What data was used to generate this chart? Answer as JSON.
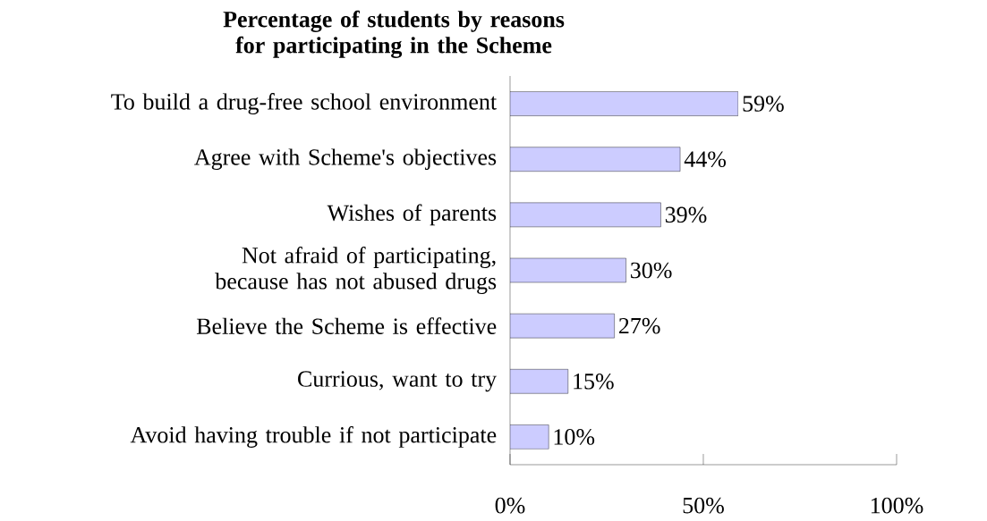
{
  "chart_data": {
    "type": "bar",
    "orientation": "horizontal",
    "title": "Percentage of students by reasons for participating in the Scheme",
    "categories": [
      "To build a drug-free school environment",
      "Agree with Scheme's objectives",
      "Wishes of parents",
      "Not afraid of participating, because has not abused drugs",
      "Believe the Scheme is effective",
      "Currious, want to try",
      "Avoid having trouble if not participate"
    ],
    "values": [
      59,
      44,
      39,
      30,
      27,
      15,
      10
    ],
    "value_labels": [
      "59%",
      "44%",
      "39%",
      "30%",
      "27%",
      "15%",
      "10%"
    ],
    "color": "#ccccff",
    "xlim": [
      0,
      100
    ],
    "xticks": [
      {
        "value": 0,
        "label": "0%"
      },
      {
        "value": 50,
        "label": "50%"
      },
      {
        "value": 100,
        "label": "100%"
      }
    ],
    "grid": false
  }
}
